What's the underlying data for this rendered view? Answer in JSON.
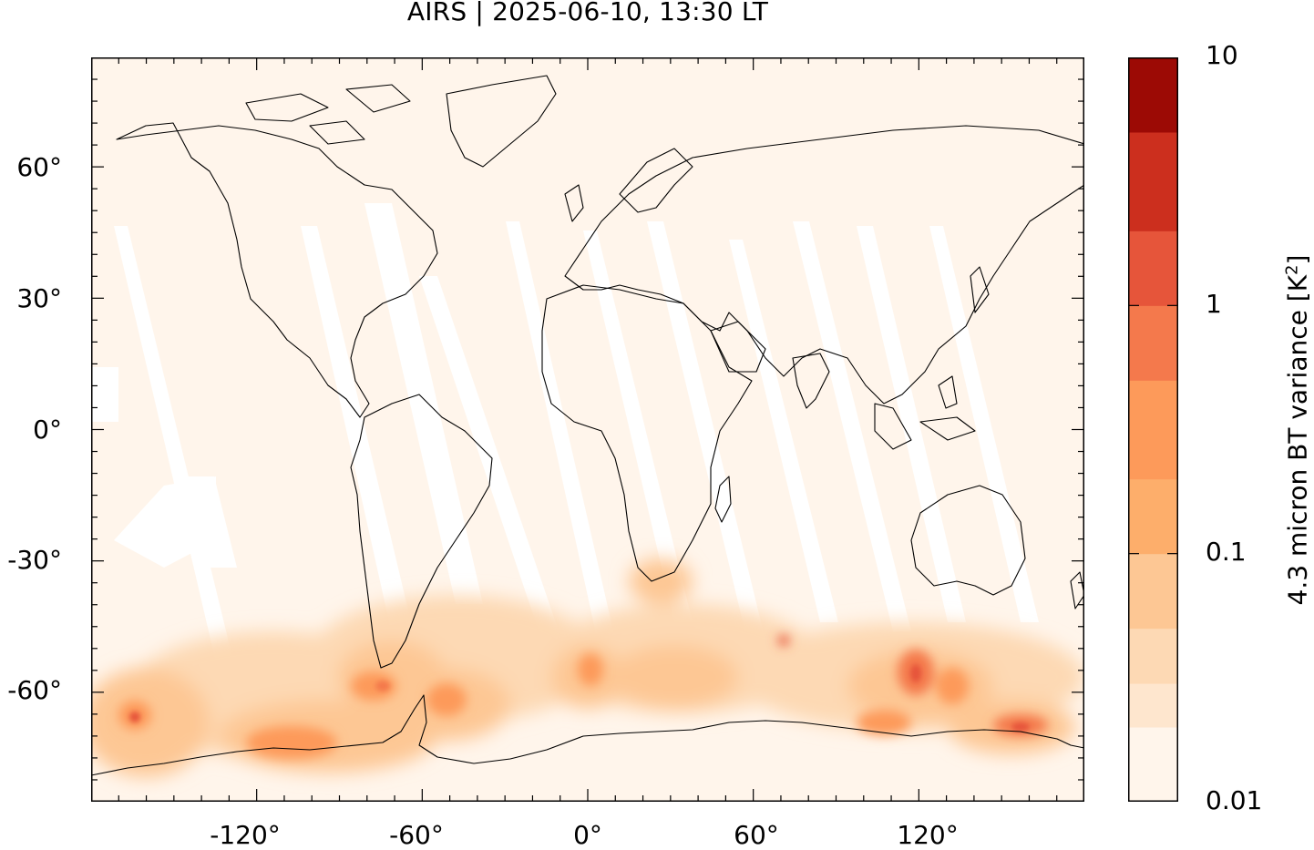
{
  "title": "AIRS | 2025-06-10, 13:30 LT",
  "map": {
    "projection": "equirectangular",
    "lon_range": [
      -180,
      180
    ],
    "lat_range": [
      -85,
      85
    ],
    "coastlines": true,
    "data_gaps_color": "#ffffff"
  },
  "axes": {
    "lat_ticks": [
      "60°",
      "30°",
      "0°",
      "-30°",
      "-60°"
    ],
    "lat_values": [
      60,
      30,
      0,
      -30,
      -60
    ],
    "lon_ticks": [
      "-120°",
      "-60°",
      "0°",
      "60°",
      "120°"
    ],
    "lon_values": [
      -120,
      -60,
      0,
      60,
      120
    ]
  },
  "colorbar": {
    "label_main": "4.3 micron BT variance [K",
    "label_sup": "2",
    "label_end": "]",
    "scale": "log",
    "tick_labels": [
      "10",
      "1",
      "0.1",
      "0.01"
    ],
    "tick_values": [
      10,
      1,
      0.1,
      0.01
    ],
    "bins": [
      {
        "lo": 0.01,
        "hi": 0.02,
        "color": "#fff5eb"
      },
      {
        "lo": 0.02,
        "hi": 0.03,
        "color": "#fee6ce"
      },
      {
        "lo": 0.03,
        "hi": 0.05,
        "color": "#fdd9b4"
      },
      {
        "lo": 0.05,
        "hi": 0.1,
        "color": "#fdc794"
      },
      {
        "lo": 0.1,
        "hi": 0.2,
        "color": "#fdae6b"
      },
      {
        "lo": 0.2,
        "hi": 0.5,
        "color": "#fd9a5a"
      },
      {
        "lo": 0.5,
        "hi": 1,
        "color": "#f4794c"
      },
      {
        "lo": 1,
        "hi": 2,
        "color": "#e6553a"
      },
      {
        "lo": 2,
        "hi": 5,
        "color": "#cc2f1e"
      },
      {
        "lo": 5,
        "hi": 10,
        "color": "#9c0a05"
      }
    ]
  }
}
